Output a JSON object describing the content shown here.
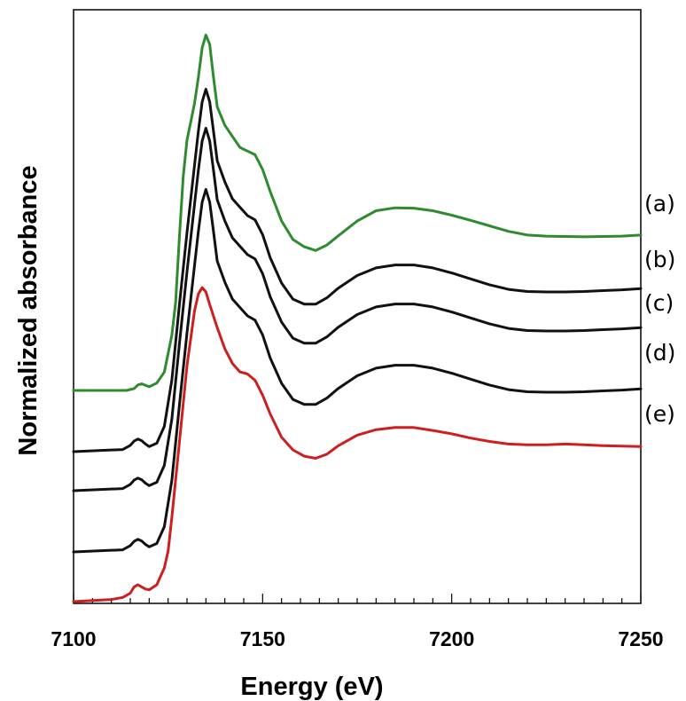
{
  "chart_data": {
    "type": "line",
    "title": "",
    "xlabel": "Energy (eV)",
    "ylabel": "Normalized absorbance",
    "xlim": [
      7100,
      7250
    ],
    "x_ticks": [
      7100,
      7150,
      7200,
      7250
    ],
    "x_minor_step": 5,
    "y_ticks_shown": false,
    "grid": false,
    "legend": "none",
    "series": [
      {
        "name": "(a)",
        "color": "#2e8b2e",
        "points": [
          [
            7100,
            0.0
          ],
          [
            7114,
            0.0
          ],
          [
            7116,
            0.005
          ],
          [
            7117,
            0.015
          ],
          [
            7118,
            0.018
          ],
          [
            7119,
            0.014
          ],
          [
            7120,
            0.01
          ],
          [
            7122,
            0.02
          ],
          [
            7124,
            0.05
          ],
          [
            7126,
            0.15
          ],
          [
            7127,
            0.24
          ],
          [
            7128,
            0.42
          ],
          [
            7129,
            0.58
          ],
          [
            7130,
            0.68
          ],
          [
            7131,
            0.73
          ],
          [
            7132,
            0.78
          ],
          [
            7133,
            0.85
          ],
          [
            7134,
            0.93
          ],
          [
            7135,
            0.965
          ],
          [
            7136,
            0.94
          ],
          [
            7137,
            0.85
          ],
          [
            7138,
            0.77
          ],
          [
            7140,
            0.72
          ],
          [
            7142,
            0.69
          ],
          [
            7144,
            0.66
          ],
          [
            7146,
            0.65
          ],
          [
            7148,
            0.64
          ],
          [
            7150,
            0.6
          ],
          [
            7152,
            0.54
          ],
          [
            7155,
            0.46
          ],
          [
            7158,
            0.41
          ],
          [
            7161,
            0.39
          ],
          [
            7164,
            0.38
          ],
          [
            7167,
            0.395
          ],
          [
            7170,
            0.42
          ],
          [
            7175,
            0.46
          ],
          [
            7180,
            0.488
          ],
          [
            7185,
            0.496
          ],
          [
            7190,
            0.495
          ],
          [
            7195,
            0.488
          ],
          [
            7200,
            0.476
          ],
          [
            7205,
            0.462
          ],
          [
            7210,
            0.447
          ],
          [
            7215,
            0.432
          ],
          [
            7220,
            0.422
          ],
          [
            7225,
            0.419
          ],
          [
            7230,
            0.418
          ],
          [
            7235,
            0.417
          ],
          [
            7240,
            0.418
          ],
          [
            7245,
            0.419
          ],
          [
            7250,
            0.422
          ]
        ]
      },
      {
        "name": "(b)",
        "color": "#111111",
        "points": [
          [
            7100,
            0.0
          ],
          [
            7113,
            0.005
          ],
          [
            7115,
            0.015
          ],
          [
            7116,
            0.025
          ],
          [
            7117,
            0.03
          ],
          [
            7118,
            0.026
          ],
          [
            7119,
            0.018
          ],
          [
            7120,
            0.012
          ],
          [
            7122,
            0.02
          ],
          [
            7124,
            0.06
          ],
          [
            7126,
            0.17
          ],
          [
            7128,
            0.35
          ],
          [
            7130,
            0.52
          ],
          [
            7132,
            0.68
          ],
          [
            7133,
            0.76
          ],
          [
            7134,
            0.83
          ],
          [
            7135,
            0.86
          ],
          [
            7136,
            0.83
          ],
          [
            7137,
            0.76
          ],
          [
            7138,
            0.69
          ],
          [
            7140,
            0.64
          ],
          [
            7142,
            0.6
          ],
          [
            7144,
            0.58
          ],
          [
            7146,
            0.56
          ],
          [
            7148,
            0.55
          ],
          [
            7150,
            0.515
          ],
          [
            7152,
            0.46
          ],
          [
            7155,
            0.4
          ],
          [
            7158,
            0.362
          ],
          [
            7161,
            0.35
          ],
          [
            7164,
            0.35
          ],
          [
            7167,
            0.365
          ],
          [
            7170,
            0.388
          ],
          [
            7175,
            0.418
          ],
          [
            7180,
            0.436
          ],
          [
            7185,
            0.443
          ],
          [
            7190,
            0.443
          ],
          [
            7195,
            0.436
          ],
          [
            7200,
            0.424
          ],
          [
            7205,
            0.41
          ],
          [
            7210,
            0.396
          ],
          [
            7215,
            0.385
          ],
          [
            7220,
            0.38
          ],
          [
            7225,
            0.379
          ],
          [
            7230,
            0.379
          ],
          [
            7235,
            0.38
          ],
          [
            7240,
            0.382
          ],
          [
            7245,
            0.384
          ],
          [
            7250,
            0.387
          ]
        ]
      },
      {
        "name": "(c)",
        "color": "#111111",
        "points": [
          [
            7100,
            0.0
          ],
          [
            7113,
            0.005
          ],
          [
            7115,
            0.015
          ],
          [
            7116,
            0.025
          ],
          [
            7117,
            0.03
          ],
          [
            7118,
            0.026
          ],
          [
            7119,
            0.018
          ],
          [
            7120,
            0.012
          ],
          [
            7122,
            0.02
          ],
          [
            7124,
            0.06
          ],
          [
            7126,
            0.17
          ],
          [
            7128,
            0.35
          ],
          [
            7130,
            0.52
          ],
          [
            7132,
            0.68
          ],
          [
            7133,
            0.76
          ],
          [
            7134,
            0.83
          ],
          [
            7135,
            0.86
          ],
          [
            7136,
            0.83
          ],
          [
            7137,
            0.76
          ],
          [
            7138,
            0.69
          ],
          [
            7140,
            0.64
          ],
          [
            7142,
            0.6
          ],
          [
            7144,
            0.58
          ],
          [
            7146,
            0.56
          ],
          [
            7148,
            0.55
          ],
          [
            7150,
            0.515
          ],
          [
            7152,
            0.46
          ],
          [
            7155,
            0.4
          ],
          [
            7158,
            0.362
          ],
          [
            7161,
            0.35
          ],
          [
            7164,
            0.35
          ],
          [
            7167,
            0.365
          ],
          [
            7170,
            0.388
          ],
          [
            7175,
            0.418
          ],
          [
            7180,
            0.436
          ],
          [
            7185,
            0.443
          ],
          [
            7190,
            0.443
          ],
          [
            7195,
            0.436
          ],
          [
            7200,
            0.424
          ],
          [
            7205,
            0.41
          ],
          [
            7210,
            0.396
          ],
          [
            7215,
            0.385
          ],
          [
            7220,
            0.38
          ],
          [
            7225,
            0.379
          ],
          [
            7230,
            0.379
          ],
          [
            7235,
            0.38
          ],
          [
            7240,
            0.382
          ],
          [
            7245,
            0.384
          ],
          [
            7250,
            0.387
          ]
        ]
      },
      {
        "name": "(d)",
        "color": "#111111",
        "points": [
          [
            7100,
            0.0
          ],
          [
            7113,
            0.005
          ],
          [
            7115,
            0.015
          ],
          [
            7116,
            0.025
          ],
          [
            7117,
            0.03
          ],
          [
            7118,
            0.026
          ],
          [
            7119,
            0.018
          ],
          [
            7120,
            0.012
          ],
          [
            7122,
            0.02
          ],
          [
            7124,
            0.06
          ],
          [
            7126,
            0.17
          ],
          [
            7128,
            0.35
          ],
          [
            7130,
            0.52
          ],
          [
            7132,
            0.68
          ],
          [
            7133,
            0.76
          ],
          [
            7134,
            0.83
          ],
          [
            7135,
            0.86
          ],
          [
            7136,
            0.83
          ],
          [
            7137,
            0.76
          ],
          [
            7138,
            0.69
          ],
          [
            7140,
            0.64
          ],
          [
            7142,
            0.6
          ],
          [
            7144,
            0.58
          ],
          [
            7146,
            0.56
          ],
          [
            7148,
            0.55
          ],
          [
            7150,
            0.515
          ],
          [
            7152,
            0.46
          ],
          [
            7155,
            0.4
          ],
          [
            7158,
            0.362
          ],
          [
            7161,
            0.35
          ],
          [
            7164,
            0.35
          ],
          [
            7167,
            0.365
          ],
          [
            7170,
            0.388
          ],
          [
            7175,
            0.418
          ],
          [
            7180,
            0.436
          ],
          [
            7185,
            0.443
          ],
          [
            7190,
            0.443
          ],
          [
            7195,
            0.436
          ],
          [
            7200,
            0.424
          ],
          [
            7205,
            0.41
          ],
          [
            7210,
            0.396
          ],
          [
            7215,
            0.385
          ],
          [
            7220,
            0.38
          ],
          [
            7225,
            0.379
          ],
          [
            7230,
            0.379
          ],
          [
            7235,
            0.38
          ],
          [
            7240,
            0.382
          ],
          [
            7245,
            0.384
          ],
          [
            7250,
            0.387
          ]
        ]
      },
      {
        "name": "(e)",
        "color": "#cc1f1f",
        "points": [
          [
            7100,
            0.0
          ],
          [
            7110,
            0.005
          ],
          [
            7113,
            0.01
          ],
          [
            7115,
            0.02
          ],
          [
            7116,
            0.035
          ],
          [
            7117,
            0.04
          ],
          [
            7118,
            0.035
          ],
          [
            7119,
            0.03
          ],
          [
            7120,
            0.028
          ],
          [
            7122,
            0.04
          ],
          [
            7124,
            0.08
          ],
          [
            7125,
            0.12
          ],
          [
            7126,
            0.2
          ],
          [
            7128,
            0.38
          ],
          [
            7130,
            0.56
          ],
          [
            7132,
            0.69
          ],
          [
            7133,
            0.73
          ],
          [
            7134,
            0.745
          ],
          [
            7135,
            0.735
          ],
          [
            7136,
            0.705
          ],
          [
            7138,
            0.65
          ],
          [
            7140,
            0.6
          ],
          [
            7142,
            0.565
          ],
          [
            7144,
            0.545
          ],
          [
            7146,
            0.54
          ],
          [
            7148,
            0.525
          ],
          [
            7150,
            0.49
          ],
          [
            7152,
            0.445
          ],
          [
            7155,
            0.39
          ],
          [
            7158,
            0.36
          ],
          [
            7161,
            0.345
          ],
          [
            7164,
            0.34
          ],
          [
            7167,
            0.35
          ],
          [
            7170,
            0.37
          ],
          [
            7175,
            0.395
          ],
          [
            7180,
            0.408
          ],
          [
            7185,
            0.413
          ],
          [
            7190,
            0.413
          ],
          [
            7195,
            0.406
          ],
          [
            7200,
            0.398
          ],
          [
            7205,
            0.388
          ],
          [
            7210,
            0.38
          ],
          [
            7215,
            0.374
          ],
          [
            7220,
            0.372
          ],
          [
            7225,
            0.372
          ],
          [
            7230,
            0.374
          ],
          [
            7235,
            0.372
          ],
          [
            7240,
            0.37
          ],
          [
            7245,
            0.369
          ],
          [
            7250,
            0.368
          ]
        ]
      }
    ]
  }
}
